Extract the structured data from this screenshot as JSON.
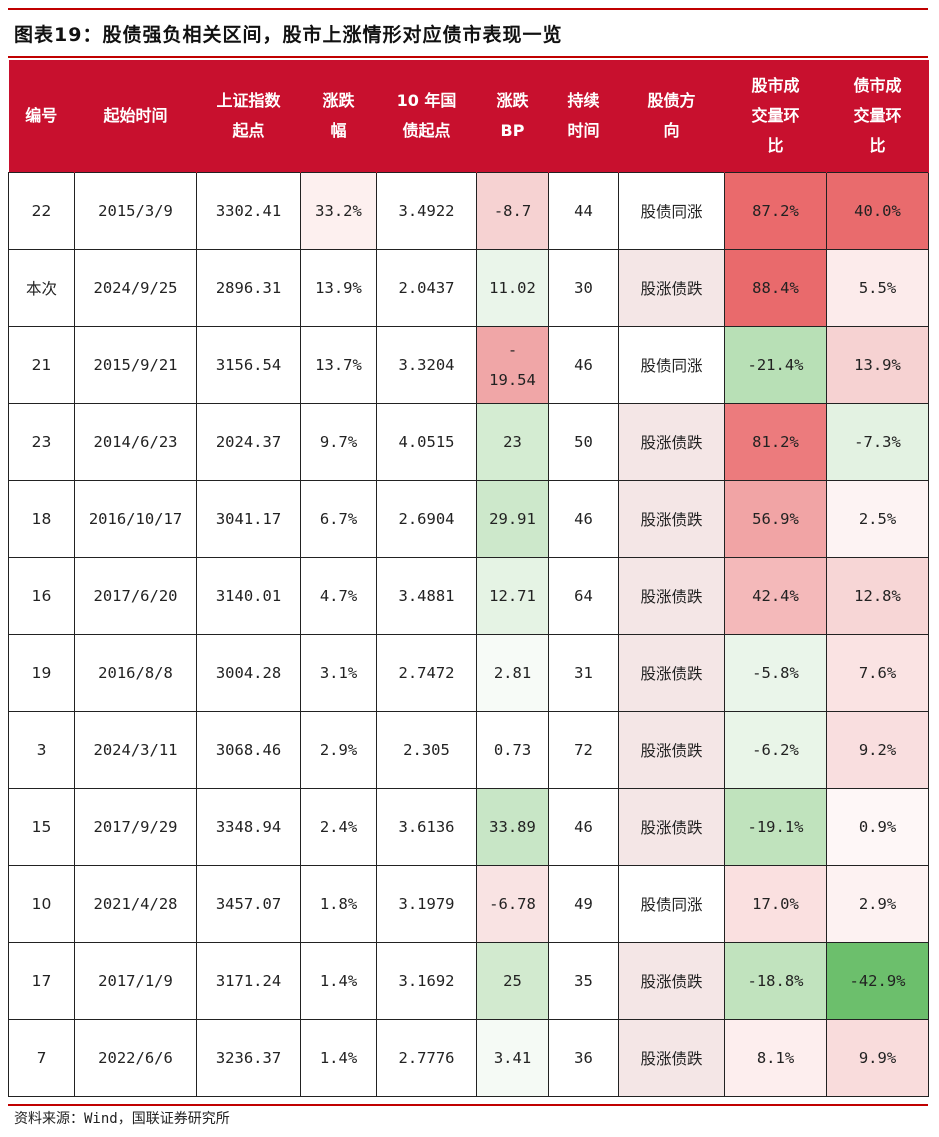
{
  "title": "图表19：股债强负相关区间，股市上涨情形对应债市表现一览",
  "footer": "资料来源：Wind，国联证券研究所",
  "colors": {
    "header_bg": "#c8102e",
    "rule": "#c00000"
  },
  "headers": [
    "编号",
    "起始时间",
    "上证指数\n起点",
    "涨跌\n幅",
    "10 年国\n债起点",
    "涨跌\nBP",
    "持续\n时间",
    "股债方\n向",
    "股市成\n交量环\n比",
    "债市成\n交量环\n比"
  ],
  "rows": [
    {
      "cells": [
        "22",
        "2015/3/9",
        "3302.41",
        "33.2%",
        "3.4922",
        "-8.7",
        "44",
        "股债同涨",
        "87.2%",
        "40.0%"
      ],
      "bg": [
        "#ffffff",
        "#ffffff",
        "#ffffff",
        "#fdf0ef",
        "#ffffff",
        "#f6d2d2",
        "#ffffff",
        "#ffffff",
        "#ea6a6c",
        "#e96b6d"
      ]
    },
    {
      "cells": [
        "本次",
        "2024/9/25",
        "2896.31",
        "13.9%",
        "2.0437",
        "11.02",
        "30",
        "股涨债跌",
        "88.4%",
        "5.5%"
      ],
      "bg": [
        "#ffffff",
        "#ffffff",
        "#ffffff",
        "#ffffff",
        "#ffffff",
        "#eaf5ea",
        "#ffffff",
        "#f4e6e6",
        "#e96a6c",
        "#fcebeb"
      ]
    },
    {
      "cells": [
        "21",
        "2015/9/21",
        "3156.54",
        "13.7%",
        "3.3204",
        "-\n19.54",
        "46",
        "股债同涨",
        "-21.4%",
        "13.9%"
      ],
      "bg": [
        "#ffffff",
        "#ffffff",
        "#ffffff",
        "#ffffff",
        "#ffffff",
        "#f0a6a7",
        "#ffffff",
        "#ffffff",
        "#b8e0b6",
        "#f6d2d2"
      ]
    },
    {
      "cells": [
        "23",
        "2014/6/23",
        "2024.37",
        "9.7%",
        "4.0515",
        "23",
        "50",
        "股涨债跌",
        "81.2%",
        "-7.3%"
      ],
      "bg": [
        "#ffffff",
        "#ffffff",
        "#ffffff",
        "#ffffff",
        "#ffffff",
        "#d4ecd2",
        "#ffffff",
        "#f4e6e6",
        "#ec7b7d",
        "#e3f2e2"
      ]
    },
    {
      "cells": [
        "18",
        "2016/10/17",
        "3041.17",
        "6.7%",
        "2.6904",
        "29.91",
        "46",
        "股涨债跌",
        "56.9%",
        "2.5%"
      ],
      "bg": [
        "#ffffff",
        "#ffffff",
        "#ffffff",
        "#ffffff",
        "#ffffff",
        "#cde8cb",
        "#ffffff",
        "#f4e6e6",
        "#f1a4a5",
        "#fdf3f3"
      ]
    },
    {
      "cells": [
        "16",
        "2017/6/20",
        "3140.01",
        "4.7%",
        "3.4881",
        "12.71",
        "64",
        "股涨债跌",
        "42.4%",
        "12.8%"
      ],
      "bg": [
        "#ffffff",
        "#ffffff",
        "#ffffff",
        "#ffffff",
        "#ffffff",
        "#e5f3e4",
        "#ffffff",
        "#f4e6e6",
        "#f4b9ba",
        "#f7d6d6"
      ]
    },
    {
      "cells": [
        "19",
        "2016/8/8",
        "3004.28",
        "3.1%",
        "2.7472",
        "2.81",
        "31",
        "股涨债跌",
        "-5.8%",
        "7.6%"
      ],
      "bg": [
        "#ffffff",
        "#ffffff",
        "#ffffff",
        "#ffffff",
        "#ffffff",
        "#f7fbf7",
        "#ffffff",
        "#f4e6e6",
        "#eaf5ea",
        "#fae3e3"
      ]
    },
    {
      "cells": [
        "3",
        "2024/3/11",
        "3068.46",
        "2.9%",
        "2.305",
        "0.73",
        "72",
        "股涨债跌",
        "-6.2%",
        "9.2%"
      ],
      "bg": [
        "#ffffff",
        "#ffffff",
        "#ffffff",
        "#ffffff",
        "#ffffff",
        "#ffffff",
        "#ffffff",
        "#f4e6e6",
        "#e9f5e8",
        "#f9dedf"
      ]
    },
    {
      "cells": [
        "15",
        "2017/9/29",
        "3348.94",
        "2.4%",
        "3.6136",
        "33.89",
        "46",
        "股涨债跌",
        "-19.1%",
        "0.9%"
      ],
      "bg": [
        "#ffffff",
        "#ffffff",
        "#ffffff",
        "#ffffff",
        "#ffffff",
        "#c8e6c6",
        "#ffffff",
        "#f4e6e6",
        "#c0e3bd",
        "#fef7f7"
      ]
    },
    {
      "cells": [
        "10",
        "2021/4/28",
        "3457.07",
        "1.8%",
        "3.1979",
        "-6.78",
        "49",
        "股债同涨",
        "17.0%",
        "2.9%"
      ],
      "bg": [
        "#ffffff",
        "#ffffff",
        "#ffffff",
        "#ffffff",
        "#ffffff",
        "#f9e3e3",
        "#ffffff",
        "#ffffff",
        "#fae0e0",
        "#fdf2f2"
      ]
    },
    {
      "cells": [
        "17",
        "2017/1/9",
        "3171.24",
        "1.4%",
        "3.1692",
        "25",
        "35",
        "股涨债跌",
        "-18.8%",
        "-42.9%"
      ],
      "bg": [
        "#ffffff",
        "#ffffff",
        "#ffffff",
        "#ffffff",
        "#ffffff",
        "#d2eacf",
        "#ffffff",
        "#f4e6e6",
        "#c1e3be",
        "#6cbf6c"
      ]
    },
    {
      "cells": [
        "7",
        "2022/6/6",
        "3236.37",
        "1.4%",
        "2.7776",
        "3.41",
        "36",
        "股涨债跌",
        "8.1%",
        "9.9%"
      ],
      "bg": [
        "#ffffff",
        "#ffffff",
        "#ffffff",
        "#ffffff",
        "#ffffff",
        "#f5faf5",
        "#ffffff",
        "#f4e6e6",
        "#fdeeee",
        "#f9dcdc"
      ]
    }
  ]
}
